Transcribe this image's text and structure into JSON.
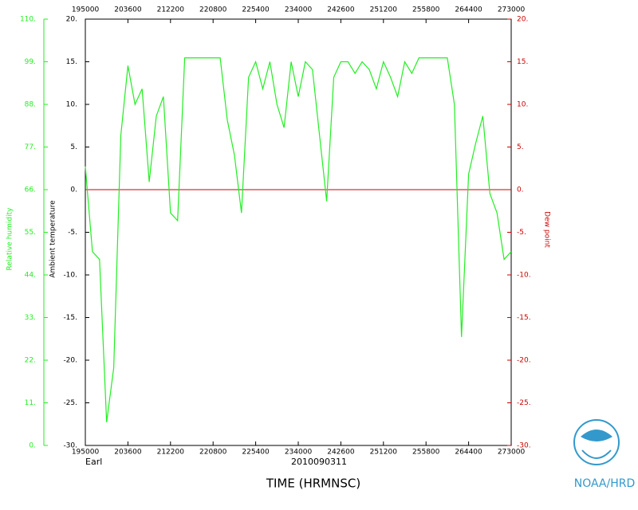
{
  "chart_data": {
    "type": "line",
    "storm": "Earl",
    "date_label": "2010090311",
    "xlabel": "TIME (HRMNSC)",
    "ylabel": "Ambient temperature",
    "y2label": "Dew point",
    "agency": "NOAA/HRD",
    "xtick_labels": [
      "195000",
      "203600",
      "212200",
      "220800",
      "225400",
      "234000",
      "242600",
      "251200",
      "255800",
      "264400",
      "273000"
    ],
    "x2tick_labels": [
      "195000",
      "203600",
      "212200",
      "220800",
      "225400",
      "234000",
      "242600",
      "251200",
      "255800",
      "264400",
      "273000"
    ],
    "ylim": [
      -30,
      20
    ],
    "yticks": [
      {
        "value": 20,
        "label": "20."
      },
      {
        "value": 15,
        "label": "15."
      },
      {
        "value": 10,
        "label": "10."
      },
      {
        "value": 5,
        "label": "5."
      },
      {
        "value": 0,
        "label": "0."
      },
      {
        "value": -5,
        "label": "-5."
      },
      {
        "value": -10,
        "label": "-10."
      },
      {
        "value": -15,
        "label": "-15."
      },
      {
        "value": -20,
        "label": "-20."
      },
      {
        "value": -25,
        "label": "-25."
      },
      {
        "value": -30,
        "label": "-30."
      }
    ],
    "y2lim": [
      -30,
      20
    ],
    "y2ticks": [
      {
        "value": 20,
        "label": "20."
      },
      {
        "value": 15,
        "label": "15."
      },
      {
        "value": 10,
        "label": "10."
      },
      {
        "value": 5,
        "label": "5."
      },
      {
        "value": 0,
        "label": "0."
      },
      {
        "value": -5,
        "label": "-5."
      },
      {
        "value": -10,
        "label": "-10."
      },
      {
        "value": -15,
        "label": "-15."
      },
      {
        "value": -20,
        "label": "-20."
      },
      {
        "value": -25,
        "label": "-25."
      },
      {
        "value": -30,
        "label": "-30."
      }
    ],
    "y3lim": [
      0,
      110
    ],
    "y3ticks": [
      {
        "value": 110,
        "label": "110."
      },
      {
        "value": 99,
        "label": "99."
      },
      {
        "value": 88,
        "label": "88."
      },
      {
        "value": 77,
        "label": "77."
      },
      {
        "value": 66,
        "label": "66."
      },
      {
        "value": 55,
        "label": "55."
      },
      {
        "value": 44,
        "label": "44."
      },
      {
        "value": 33,
        "label": "33."
      },
      {
        "value": 22,
        "label": "22."
      },
      {
        "value": 11,
        "label": "11."
      },
      {
        "value": 0,
        "label": "0."
      }
    ],
    "y2_zero_line": true,
    "y2color": "#cc0000",
    "series": [
      {
        "name": "Relative humidity",
        "color": "#22ee22",
        "axis": "y3",
        "values": [
          72,
          50,
          48,
          6,
          20,
          80,
          98,
          88,
          92,
          68,
          85,
          90,
          60,
          58,
          100,
          100,
          100,
          100,
          100,
          100,
          84,
          75,
          60,
          95,
          99,
          92,
          99,
          88,
          82,
          99,
          90,
          99,
          97,
          80,
          63,
          95,
          99,
          99,
          96,
          99,
          97,
          92,
          99,
          95,
          90,
          99,
          96,
          100,
          100,
          100,
          100,
          100,
          88,
          28,
          70,
          78,
          85,
          65,
          60,
          48,
          50
        ]
      }
    ]
  }
}
